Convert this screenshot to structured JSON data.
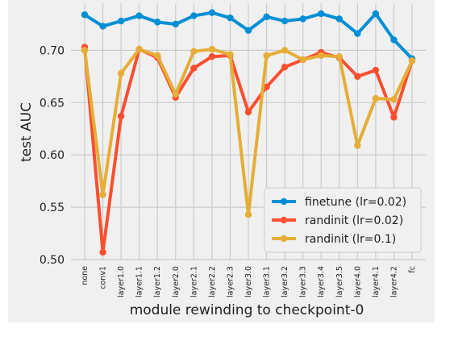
{
  "chart_data": {
    "type": "line",
    "xlabel": "module rewinding to checkpoint-0",
    "ylabel": "test AUC",
    "categories": [
      "none",
      "conv1",
      "layer1.0",
      "layer1.1",
      "layer1.2",
      "layer2.0",
      "layer2.1",
      "layer2.2",
      "layer2.3",
      "layer3.0",
      "layer3.1",
      "layer3.2",
      "layer3.3",
      "layer3.4",
      "layer3.5",
      "layer4.0",
      "layer4.1",
      "layer4.2",
      "fc"
    ],
    "ylim": [
      0.5,
      0.745
    ],
    "yticks": [
      "0.50",
      "0.55",
      "0.60",
      "0.65",
      "0.70"
    ],
    "ytick_values": [
      0.5,
      0.55,
      0.6,
      0.65,
      0.7
    ],
    "grid": true,
    "legend_position": "lower-right",
    "series": [
      {
        "name": "finetune (lr=0.02)",
        "color": "#008fd5",
        "values": [
          0.734,
          0.723,
          0.728,
          0.733,
          0.727,
          0.725,
          0.733,
          0.736,
          0.731,
          0.719,
          0.732,
          0.728,
          0.73,
          0.735,
          0.73,
          0.716,
          0.735,
          0.71,
          0.692
        ]
      },
      {
        "name": "randinit (lr=0.02)",
        "color": "#fc4f30",
        "values": [
          0.703,
          0.507,
          0.637,
          0.701,
          0.693,
          0.655,
          0.683,
          0.694,
          0.695,
          0.641,
          0.665,
          0.684,
          0.691,
          0.698,
          0.693,
          0.675,
          0.681,
          0.636,
          0.69
        ]
      },
      {
        "name": "randinit (lr=0.1)",
        "color": "#e5ae38",
        "values": [
          0.7,
          0.562,
          0.678,
          0.701,
          0.695,
          0.658,
          0.699,
          0.701,
          0.696,
          0.543,
          0.695,
          0.7,
          0.691,
          0.695,
          0.694,
          0.609,
          0.654,
          0.653,
          0.69
        ]
      }
    ]
  }
}
